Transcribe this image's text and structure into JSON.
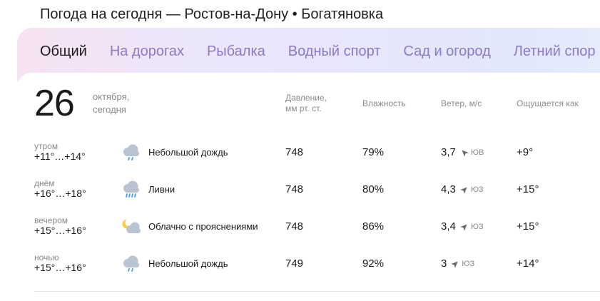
{
  "page": {
    "title": "Погода на сегодня — Ростов-на-Дону • Богатяновка"
  },
  "tabs": [
    {
      "label": "Общий",
      "active": true
    },
    {
      "label": "На дорогах"
    },
    {
      "label": "Рыбалка"
    },
    {
      "label": "Водный спорт"
    },
    {
      "label": "Сад и огород"
    },
    {
      "label": "Летний спор"
    }
  ],
  "date": {
    "day": "26",
    "month": "октября,",
    "relative": "сегодня"
  },
  "columns": {
    "pressure_line1": "Давление,",
    "pressure_line2": "мм рт. ст.",
    "humidity": "Влажность",
    "wind": "Ветер, м/с",
    "feels_like": "Ощущается как"
  },
  "rows": [
    {
      "part": "утром",
      "temp": "+11°…+14°",
      "icon": "cloud-light-rain-icon",
      "condition": "Небольшой дождь",
      "pressure": "748",
      "humidity": "79%",
      "wind_speed": "3,7",
      "wind_dir": "ЮВ",
      "wind_arrow_deg": 315,
      "feels": "+9°"
    },
    {
      "part": "днём",
      "temp": "+16°…+18°",
      "icon": "cloud-showers-icon",
      "condition": "Ливни",
      "pressure": "748",
      "humidity": "80%",
      "wind_speed": "4,3",
      "wind_dir": "ЮЗ",
      "wind_arrow_deg": 45,
      "feels": "+15°"
    },
    {
      "part": "вечером",
      "temp": "+15°…+16°",
      "icon": "moon-cloud-icon",
      "condition": "Облачно с прояснениями",
      "pressure": "748",
      "humidity": "86%",
      "wind_speed": "3,4",
      "wind_dir": "ЮЗ",
      "wind_arrow_deg": 45,
      "feels": "+15°"
    },
    {
      "part": "ночью",
      "temp": "+15°…+16°",
      "icon": "cloud-light-rain-icon",
      "condition": "Небольшой дождь",
      "pressure": "749",
      "humidity": "92%",
      "wind_speed": "3",
      "wind_dir": "ЮЗ",
      "wind_arrow_deg": 45,
      "feels": "+14°"
    }
  ],
  "colors": {
    "tab_inactive": "#8d79c5",
    "accent_rain": "#4a9fe8",
    "cloud": "#b9c4d2",
    "moon": "#ffc93c"
  }
}
